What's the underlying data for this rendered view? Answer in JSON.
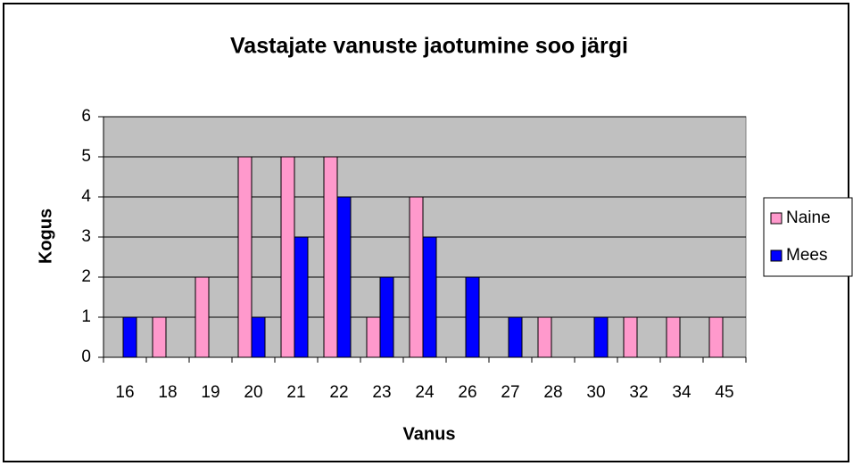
{
  "chart_data": {
    "type": "bar",
    "title": "Vastajate vanuste jaotumine soo järgi",
    "x_label": "Vanus",
    "y_label": "Kogus",
    "categories": [
      "16",
      "18",
      "19",
      "20",
      "21",
      "22",
      "23",
      "24",
      "26",
      "27",
      "28",
      "30",
      "32",
      "34",
      "45"
    ],
    "series": [
      {
        "name": "Naine",
        "color": "#ff99cc",
        "values": [
          0,
          1,
          2,
          5,
          5,
          5,
          1,
          4,
          0,
          0,
          1,
          0,
          1,
          1,
          1
        ]
      },
      {
        "name": "Mees",
        "color": "#0000ff",
        "values": [
          1,
          0,
          0,
          1,
          3,
          4,
          2,
          3,
          2,
          1,
          0,
          1,
          0,
          0,
          0
        ]
      }
    ],
    "ylim": [
      0,
      6
    ],
    "yticks": [
      0,
      1,
      2,
      3,
      4,
      5,
      6
    ],
    "grid": true,
    "legend": "right"
  }
}
